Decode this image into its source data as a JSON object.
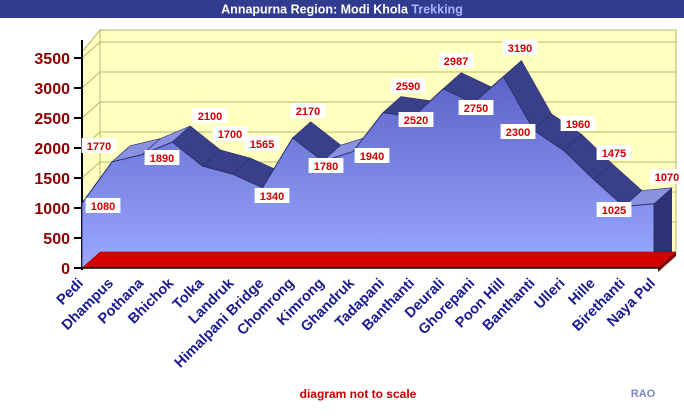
{
  "header": {
    "title_main": "Annapurna Region: Modi Khola ",
    "title_accent": "Trekking"
  },
  "footer": {
    "note": "diagram not to scale",
    "credit": "RAO"
  },
  "colors": {
    "header_bg": "#313c8e",
    "header_accent": "#a4b6ff",
    "wall_fill": "#ffffc0",
    "grid": "#b8b86a",
    "area_top": "#5c63c8",
    "area_bottom": "#9aa8ff",
    "floor": "#d40000",
    "ytick_label": "#8b0000",
    "xtick_label": "#1a1a8e",
    "data_label": "#cc0000",
    "footer_note": "#c00000",
    "credit": "#7a8ac4"
  },
  "chart_data": {
    "type": "area",
    "title": "Annapurna Region: Modi Khola Trekking",
    "categories": [
      "Pedi",
      "Dhampus",
      "Pothana",
      "Bhichok",
      "Tolka",
      "Landruk",
      "Himalpani Bridge",
      "Chomrong",
      "Kimrong",
      "Ghandruk",
      "Tadapani",
      "Banthanti",
      "Deurali",
      "Ghorepani",
      "Poon Hill",
      "Banthanti",
      "Ulleri",
      "Hille",
      "Birethanti",
      "Naya Pul"
    ],
    "series": [
      {
        "values": [
          1080,
          1770,
          1890,
          2100,
          1700,
          1565,
          1340,
          2170,
          1780,
          1940,
          2590,
          2520,
          2987,
          2750,
          3190,
          2300,
          1960,
          1475,
          1025,
          1070
        ]
      }
    ],
    "data_labels": [
      "1080",
      "1770",
      "1890",
      "2100",
      "1700",
      "1565",
      "1340",
      "2170",
      "1780",
      "1940",
      "2590",
      "2520",
      "2987",
      "2750",
      "3190",
      "2300",
      "1960",
      "1475",
      "1025",
      "1070"
    ],
    "y_ticks": [
      0,
      500,
      1000,
      1500,
      2000,
      2500,
      3000,
      3500
    ],
    "ylim": [
      0,
      3500
    ],
    "grid": true,
    "legend": "none",
    "annotation": "diagram not to scale"
  }
}
